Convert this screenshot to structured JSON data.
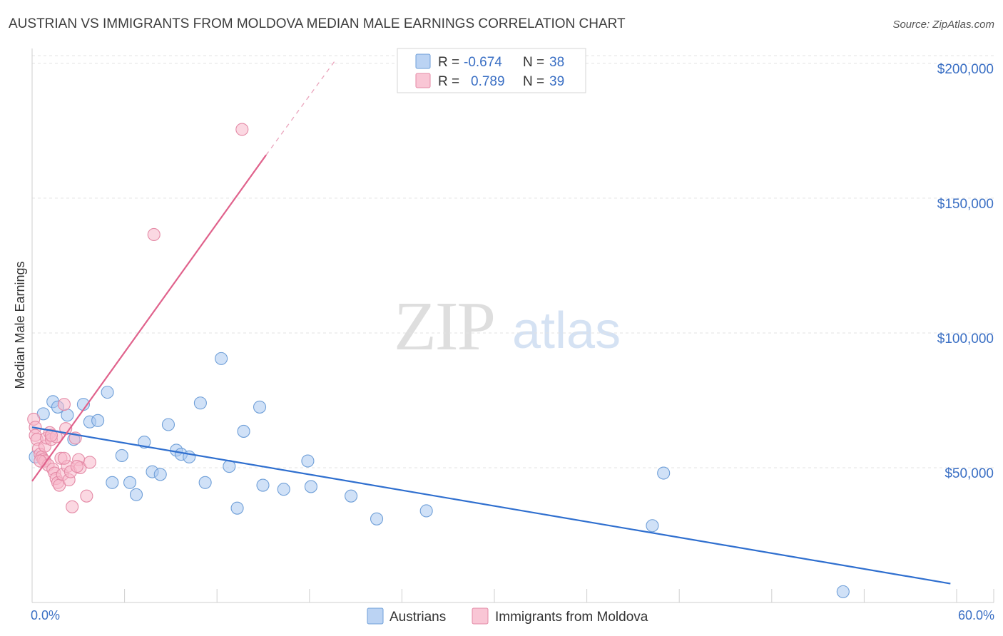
{
  "header": {
    "title": "AUSTRIAN VS IMMIGRANTS FROM MOLDOVA MEDIAN MALE EARNINGS CORRELATION CHART",
    "source": "Source: ZipAtlas.com"
  },
  "watermark": {
    "zip": "ZIP",
    "atlas": "atlas"
  },
  "legend_top": {
    "rows": [
      {
        "r_label": "R =",
        "r_value": "-0.674",
        "n_label": "N =",
        "n_value": "38",
        "color": "#aac8f0",
        "stroke": "#6f9fd8"
      },
      {
        "r_label": "R =",
        "r_value": "0.789",
        "n_label": "N =",
        "n_value": "39",
        "color": "#f7b8cb",
        "stroke": "#e48aa6"
      }
    ]
  },
  "legend_bottom": {
    "items": [
      {
        "label": "Austrians",
        "color": "#aac8f0",
        "stroke": "#6f9fd8"
      },
      {
        "label": "Immigrants from Moldova",
        "color": "#f7b8cb",
        "stroke": "#e48aa6"
      }
    ]
  },
  "chart_data": {
    "type": "scatter",
    "title": "AUSTRIAN VS IMMIGRANTS FROM MOLDOVA MEDIAN MALE EARNINGS CORRELATION CHART",
    "ylabel": "Median Male Earnings",
    "xlabel": "",
    "xlim": [
      0,
      60
    ],
    "ylim": [
      0,
      205000
    ],
    "x_tick_labels": [
      {
        "value": 0,
        "label": "0.0%"
      },
      {
        "value": 60,
        "label": "60.0%"
      }
    ],
    "y_tick_labels": [
      {
        "value": 50000,
        "label": "$50,000"
      },
      {
        "value": 100000,
        "label": "$100,000"
      },
      {
        "value": 150000,
        "label": "$150,000"
      },
      {
        "value": 200000,
        "label": "$200,000"
      }
    ],
    "grid": true,
    "legend_position": "top-center",
    "series": [
      {
        "name": "Austrians",
        "color": "#6f9fd8",
        "fill": "#aac8f0",
        "line_color": "#2f6fcf",
        "trend": {
          "x": [
            0,
            57.3
          ],
          "y": [
            65000,
            7000
          ]
        },
        "points": [
          {
            "x": 0.2,
            "y": 54000
          },
          {
            "x": 0.7,
            "y": 70000
          },
          {
            "x": 1.3,
            "y": 74500
          },
          {
            "x": 1.6,
            "y": 72500
          },
          {
            "x": 2.2,
            "y": 69500
          },
          {
            "x": 2.6,
            "y": 60500
          },
          {
            "x": 3.2,
            "y": 73500
          },
          {
            "x": 3.6,
            "y": 67000
          },
          {
            "x": 4.1,
            "y": 67500
          },
          {
            "x": 4.7,
            "y": 78000
          },
          {
            "x": 5.0,
            "y": 44500
          },
          {
            "x": 5.6,
            "y": 54500
          },
          {
            "x": 6.1,
            "y": 44500
          },
          {
            "x": 6.5,
            "y": 40000
          },
          {
            "x": 7.0,
            "y": 59500
          },
          {
            "x": 7.5,
            "y": 48500
          },
          {
            "x": 8.0,
            "y": 47500
          },
          {
            "x": 8.5,
            "y": 66000
          },
          {
            "x": 9.0,
            "y": 56500
          },
          {
            "x": 9.3,
            "y": 55000
          },
          {
            "x": 9.8,
            "y": 54000
          },
          {
            "x": 10.5,
            "y": 74000
          },
          {
            "x": 10.8,
            "y": 44500
          },
          {
            "x": 11.8,
            "y": 90500
          },
          {
            "x": 12.3,
            "y": 50500
          },
          {
            "x": 12.8,
            "y": 35000
          },
          {
            "x": 13.2,
            "y": 63500
          },
          {
            "x": 14.2,
            "y": 72500
          },
          {
            "x": 14.4,
            "y": 43500
          },
          {
            "x": 15.7,
            "y": 42000
          },
          {
            "x": 17.2,
            "y": 52500
          },
          {
            "x": 17.4,
            "y": 43000
          },
          {
            "x": 19.9,
            "y": 39500
          },
          {
            "x": 21.5,
            "y": 31000
          },
          {
            "x": 24.6,
            "y": 34000
          },
          {
            "x": 38.7,
            "y": 28500
          },
          {
            "x": 39.4,
            "y": 48000
          },
          {
            "x": 50.6,
            "y": 4000
          }
        ]
      },
      {
        "name": "Immigrants from Moldova",
        "color": "#e48aa6",
        "fill": "#f7b8cb",
        "line_color": "#e0628c",
        "trend": {
          "x": [
            0,
            14.6
          ],
          "y": [
            45000,
            166000
          ]
        },
        "trend_extension": {
          "x": [
            14.6,
            18.9
          ],
          "y": [
            166000,
            201000
          ]
        },
        "points": [
          {
            "x": 0.1,
            "y": 68000
          },
          {
            "x": 0.2,
            "y": 65000
          },
          {
            "x": 0.2,
            "y": 62000
          },
          {
            "x": 0.3,
            "y": 60500
          },
          {
            "x": 0.4,
            "y": 57000
          },
          {
            "x": 0.5,
            "y": 55000
          },
          {
            "x": 0.6,
            "y": 54000
          },
          {
            "x": 0.7,
            "y": 53000
          },
          {
            "x": 0.8,
            "y": 52500
          },
          {
            "x": 0.8,
            "y": 58000
          },
          {
            "x": 0.9,
            "y": 61000
          },
          {
            "x": 1.0,
            "y": 51000
          },
          {
            "x": 1.1,
            "y": 63000
          },
          {
            "x": 1.2,
            "y": 60500
          },
          {
            "x": 1.3,
            "y": 49500
          },
          {
            "x": 1.4,
            "y": 48000
          },
          {
            "x": 1.5,
            "y": 46000
          },
          {
            "x": 1.6,
            "y": 44500
          },
          {
            "x": 1.7,
            "y": 43500
          },
          {
            "x": 1.8,
            "y": 53500
          },
          {
            "x": 1.9,
            "y": 47500
          },
          {
            "x": 2.0,
            "y": 73500
          },
          {
            "x": 2.1,
            "y": 64500
          },
          {
            "x": 2.2,
            "y": 50500
          },
          {
            "x": 2.3,
            "y": 45500
          },
          {
            "x": 2.4,
            "y": 48500
          },
          {
            "x": 2.5,
            "y": 35500
          },
          {
            "x": 2.7,
            "y": 61000
          },
          {
            "x": 2.9,
            "y": 53000
          },
          {
            "x": 3.0,
            "y": 50000
          },
          {
            "x": 3.4,
            "y": 39500
          },
          {
            "x": 3.6,
            "y": 52000
          },
          {
            "x": 7.6,
            "y": 136500
          },
          {
            "x": 13.1,
            "y": 175500
          },
          {
            "x": 0.5,
            "y": 52500
          },
          {
            "x": 1.5,
            "y": 61500
          },
          {
            "x": 2.8,
            "y": 50500
          },
          {
            "x": 1.2,
            "y": 62000
          },
          {
            "x": 2.0,
            "y": 53500
          }
        ]
      }
    ]
  }
}
